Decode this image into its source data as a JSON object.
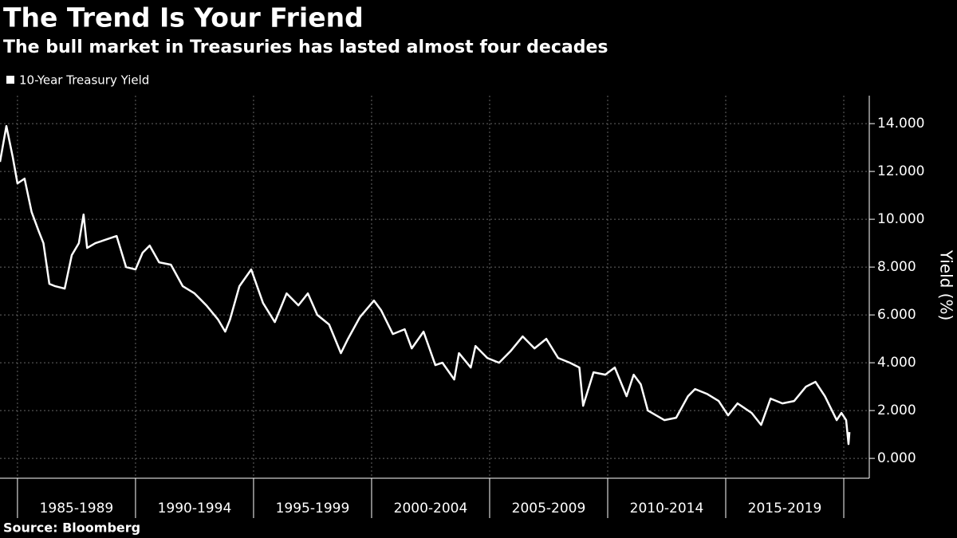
{
  "chart_data": {
    "type": "line",
    "title": "The Trend Is Your Friend",
    "subtitle": "The bull market in Treasuries has lasted almost four decades",
    "ylabel": "Yield (%)",
    "source": "Source: Bloomberg",
    "x": [
      1984.26,
      1984.53,
      1984.8,
      1985.0,
      1985.3,
      1985.6,
      1985.9,
      1986.1,
      1986.35,
      1986.6,
      1987.0,
      1987.3,
      1987.6,
      1987.8,
      1987.95,
      1988.3,
      1988.6,
      1989.2,
      1989.6,
      1990.0,
      1990.3,
      1990.6,
      1991.0,
      1991.5,
      1992.0,
      1992.5,
      1993.0,
      1993.5,
      1993.8,
      1994.0,
      1994.4,
      1994.9,
      1995.4,
      1995.9,
      1996.4,
      1996.9,
      1997.3,
      1997.7,
      1998.2,
      1998.7,
      1999.0,
      1999.5,
      2000.1,
      2000.4,
      2000.9,
      2001.4,
      2001.7,
      2002.2,
      2002.7,
      2003.0,
      2003.5,
      2003.7,
      2004.2,
      2004.4,
      2004.9,
      2005.4,
      2005.9,
      2006.4,
      2006.9,
      2007.4,
      2007.9,
      2008.4,
      2008.8,
      2008.96,
      2009.4,
      2009.9,
      2010.3,
      2010.8,
      2011.1,
      2011.4,
      2011.7,
      2012.4,
      2012.9,
      2013.4,
      2013.7,
      2014.2,
      2014.7,
      2015.1,
      2015.5,
      2016.1,
      2016.5,
      2016.9,
      2017.4,
      2017.9,
      2018.4,
      2018.8,
      2019.2,
      2019.7,
      2019.9,
      2020.1,
      2020.2,
      2020.24
    ],
    "series": [
      {
        "name": "10-Year Treasury Yield",
        "color": "#ffffff",
        "values": [
          12.4,
          13.9,
          12.6,
          11.5,
          11.7,
          10.3,
          9.5,
          9.0,
          7.3,
          7.2,
          7.1,
          8.5,
          9.0,
          10.2,
          8.8,
          9.0,
          9.1,
          9.3,
          8.0,
          7.9,
          8.6,
          8.9,
          8.2,
          8.1,
          7.2,
          6.9,
          6.4,
          5.8,
          5.3,
          5.8,
          7.2,
          7.9,
          6.5,
          5.7,
          6.9,
          6.4,
          6.9,
          6.0,
          5.6,
          4.4,
          5.0,
          5.9,
          6.6,
          6.2,
          5.2,
          5.4,
          4.6,
          5.3,
          3.9,
          4.0,
          3.3,
          4.4,
          3.8,
          4.7,
          4.2,
          4.0,
          4.5,
          5.1,
          4.6,
          5.0,
          4.2,
          4.0,
          3.8,
          2.2,
          3.6,
          3.5,
          3.8,
          2.6,
          3.5,
          3.1,
          2.0,
          1.6,
          1.7,
          2.6,
          2.9,
          2.7,
          2.4,
          1.8,
          2.3,
          1.9,
          1.4,
          2.5,
          2.3,
          2.4,
          3.0,
          3.2,
          2.6,
          1.6,
          1.9,
          1.6,
          0.6,
          1.1
        ]
      }
    ],
    "xlim": [
      1984.26,
      2021.08
    ],
    "xticks": [
      {
        "value": 1987.5,
        "label": "1985-1989"
      },
      {
        "value": 1992.5,
        "label": "1990-1994"
      },
      {
        "value": 1997.5,
        "label": "1995-1999"
      },
      {
        "value": 2002.5,
        "label": "2000-2004"
      },
      {
        "value": 2007.5,
        "label": "2005-2009"
      },
      {
        "value": 2012.5,
        "label": "2010-2014"
      },
      {
        "value": 2017.5,
        "label": "2015-2019"
      }
    ],
    "ylim": [
      -0.83,
      15.17
    ],
    "yticks": [
      {
        "value": 0,
        "label": "0.000"
      },
      {
        "value": 2,
        "label": "2.000"
      },
      {
        "value": 4,
        "label": "4.000"
      },
      {
        "value": 6,
        "label": "6.000"
      },
      {
        "value": 8,
        "label": "8.000"
      },
      {
        "value": 10,
        "label": "10.000"
      },
      {
        "value": 12,
        "label": "12.000"
      },
      {
        "value": 14,
        "label": "14.000"
      }
    ],
    "grid": true,
    "legend": "top-left"
  }
}
